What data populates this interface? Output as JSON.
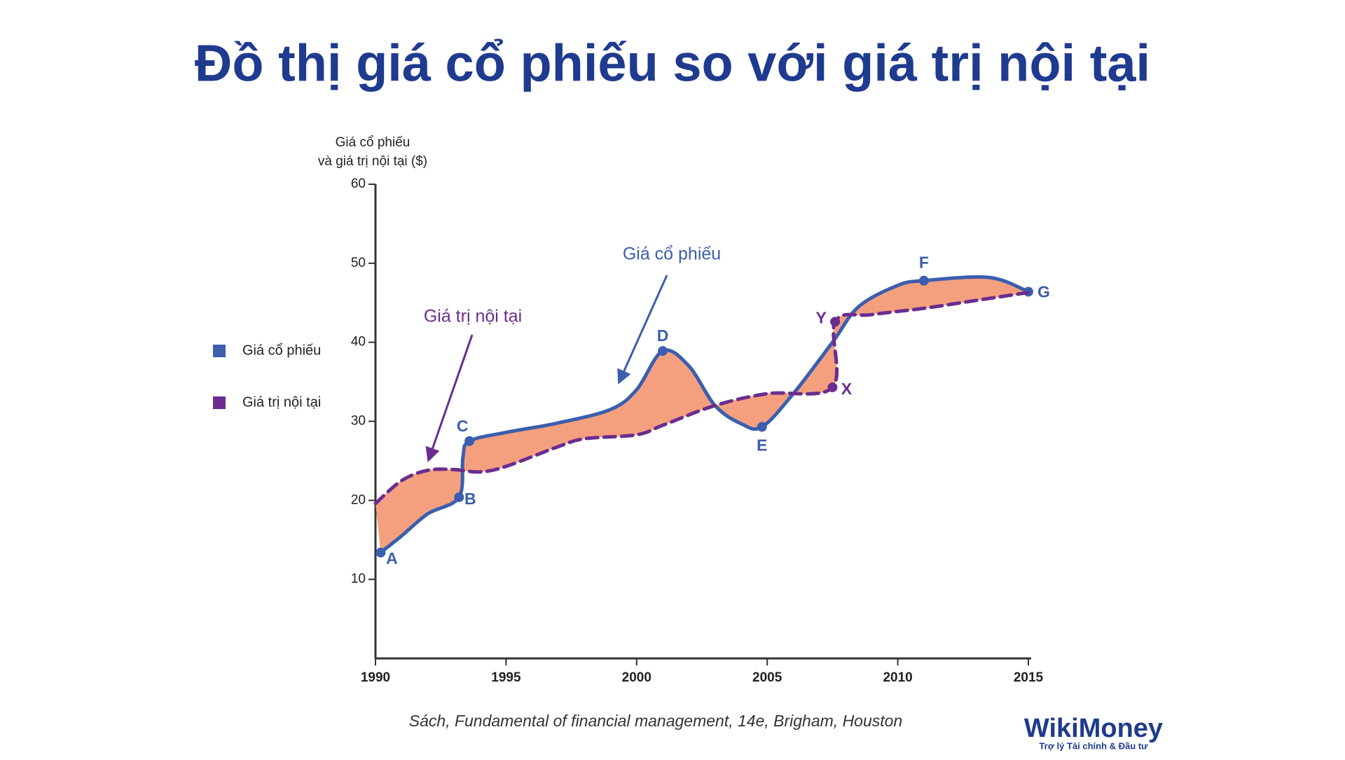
{
  "chart_data": {
    "type": "line",
    "title": "Đồ thị giá cổ phiếu so với giá trị nội tại",
    "y_label": [
      "Giá cổ phiếu",
      "và giá trị nội tại ($)"
    ],
    "xlim": [
      1990,
      2015
    ],
    "xticks": [
      1990,
      1995,
      2000,
      2005,
      2010,
      2015
    ],
    "ylim": [
      0,
      60
    ],
    "yticks": [
      10,
      20,
      30,
      40,
      50,
      60
    ],
    "legend": "left",
    "fill_between_color": "#f4a07f",
    "series": [
      {
        "name": "Giá cổ phiếu",
        "color": "#3b5eae",
        "dashed": false,
        "x": [
          1990.2,
          1991,
          1992,
          1993.2,
          1993.35,
          1993.6,
          1995,
          1997,
          1999,
          2000,
          2001,
          2002,
          2003,
          2004,
          2004.8,
          2006,
          2007.5,
          2008.5,
          2010,
          2011,
          2013.5,
          2015
        ],
        "values": [
          13.4,
          15.5,
          18.3,
          20.4,
          25.5,
          27.5,
          28.6,
          29.8,
          31.5,
          34,
          38.9,
          37,
          32,
          29.7,
          29.3,
          33.5,
          40,
          44.5,
          47.2,
          47.8,
          48.2,
          46.4
        ],
        "point_labels": [
          "A",
          null,
          null,
          "B",
          null,
          "C",
          null,
          null,
          null,
          null,
          "D",
          null,
          null,
          null,
          "E",
          null,
          null,
          null,
          null,
          "F",
          null,
          "G"
        ]
      },
      {
        "name": "Giá trị nội tại",
        "color": "#6a2d8f",
        "dashed": true,
        "x": [
          1990,
          1991,
          1992,
          1993,
          1994,
          1995,
          1997,
          1998,
          2000,
          2001,
          2003,
          2005,
          2007.5,
          2007.6,
          2009,
          2011,
          2013,
          2015
        ],
        "values": [
          19.6,
          22.5,
          23.8,
          23.9,
          23.6,
          24.3,
          26.8,
          27.8,
          28.3,
          29.5,
          32,
          33.5,
          34.3,
          42.6,
          43.5,
          44.3,
          45.3,
          46.3
        ],
        "point_labels": [
          null,
          null,
          null,
          null,
          null,
          null,
          null,
          null,
          null,
          null,
          null,
          null,
          "X",
          "Y",
          null,
          null,
          null,
          null
        ]
      }
    ],
    "annotations": [
      "Giá cổ phiếu",
      "Giá trị nội tại"
    ],
    "source": "Sách, Fundamental of financial management, 14e, Brigham, Houston"
  },
  "logo": {
    "name": "WikiMoney",
    "tagline": "Trợ lý Tài chính & Đầu tư"
  }
}
